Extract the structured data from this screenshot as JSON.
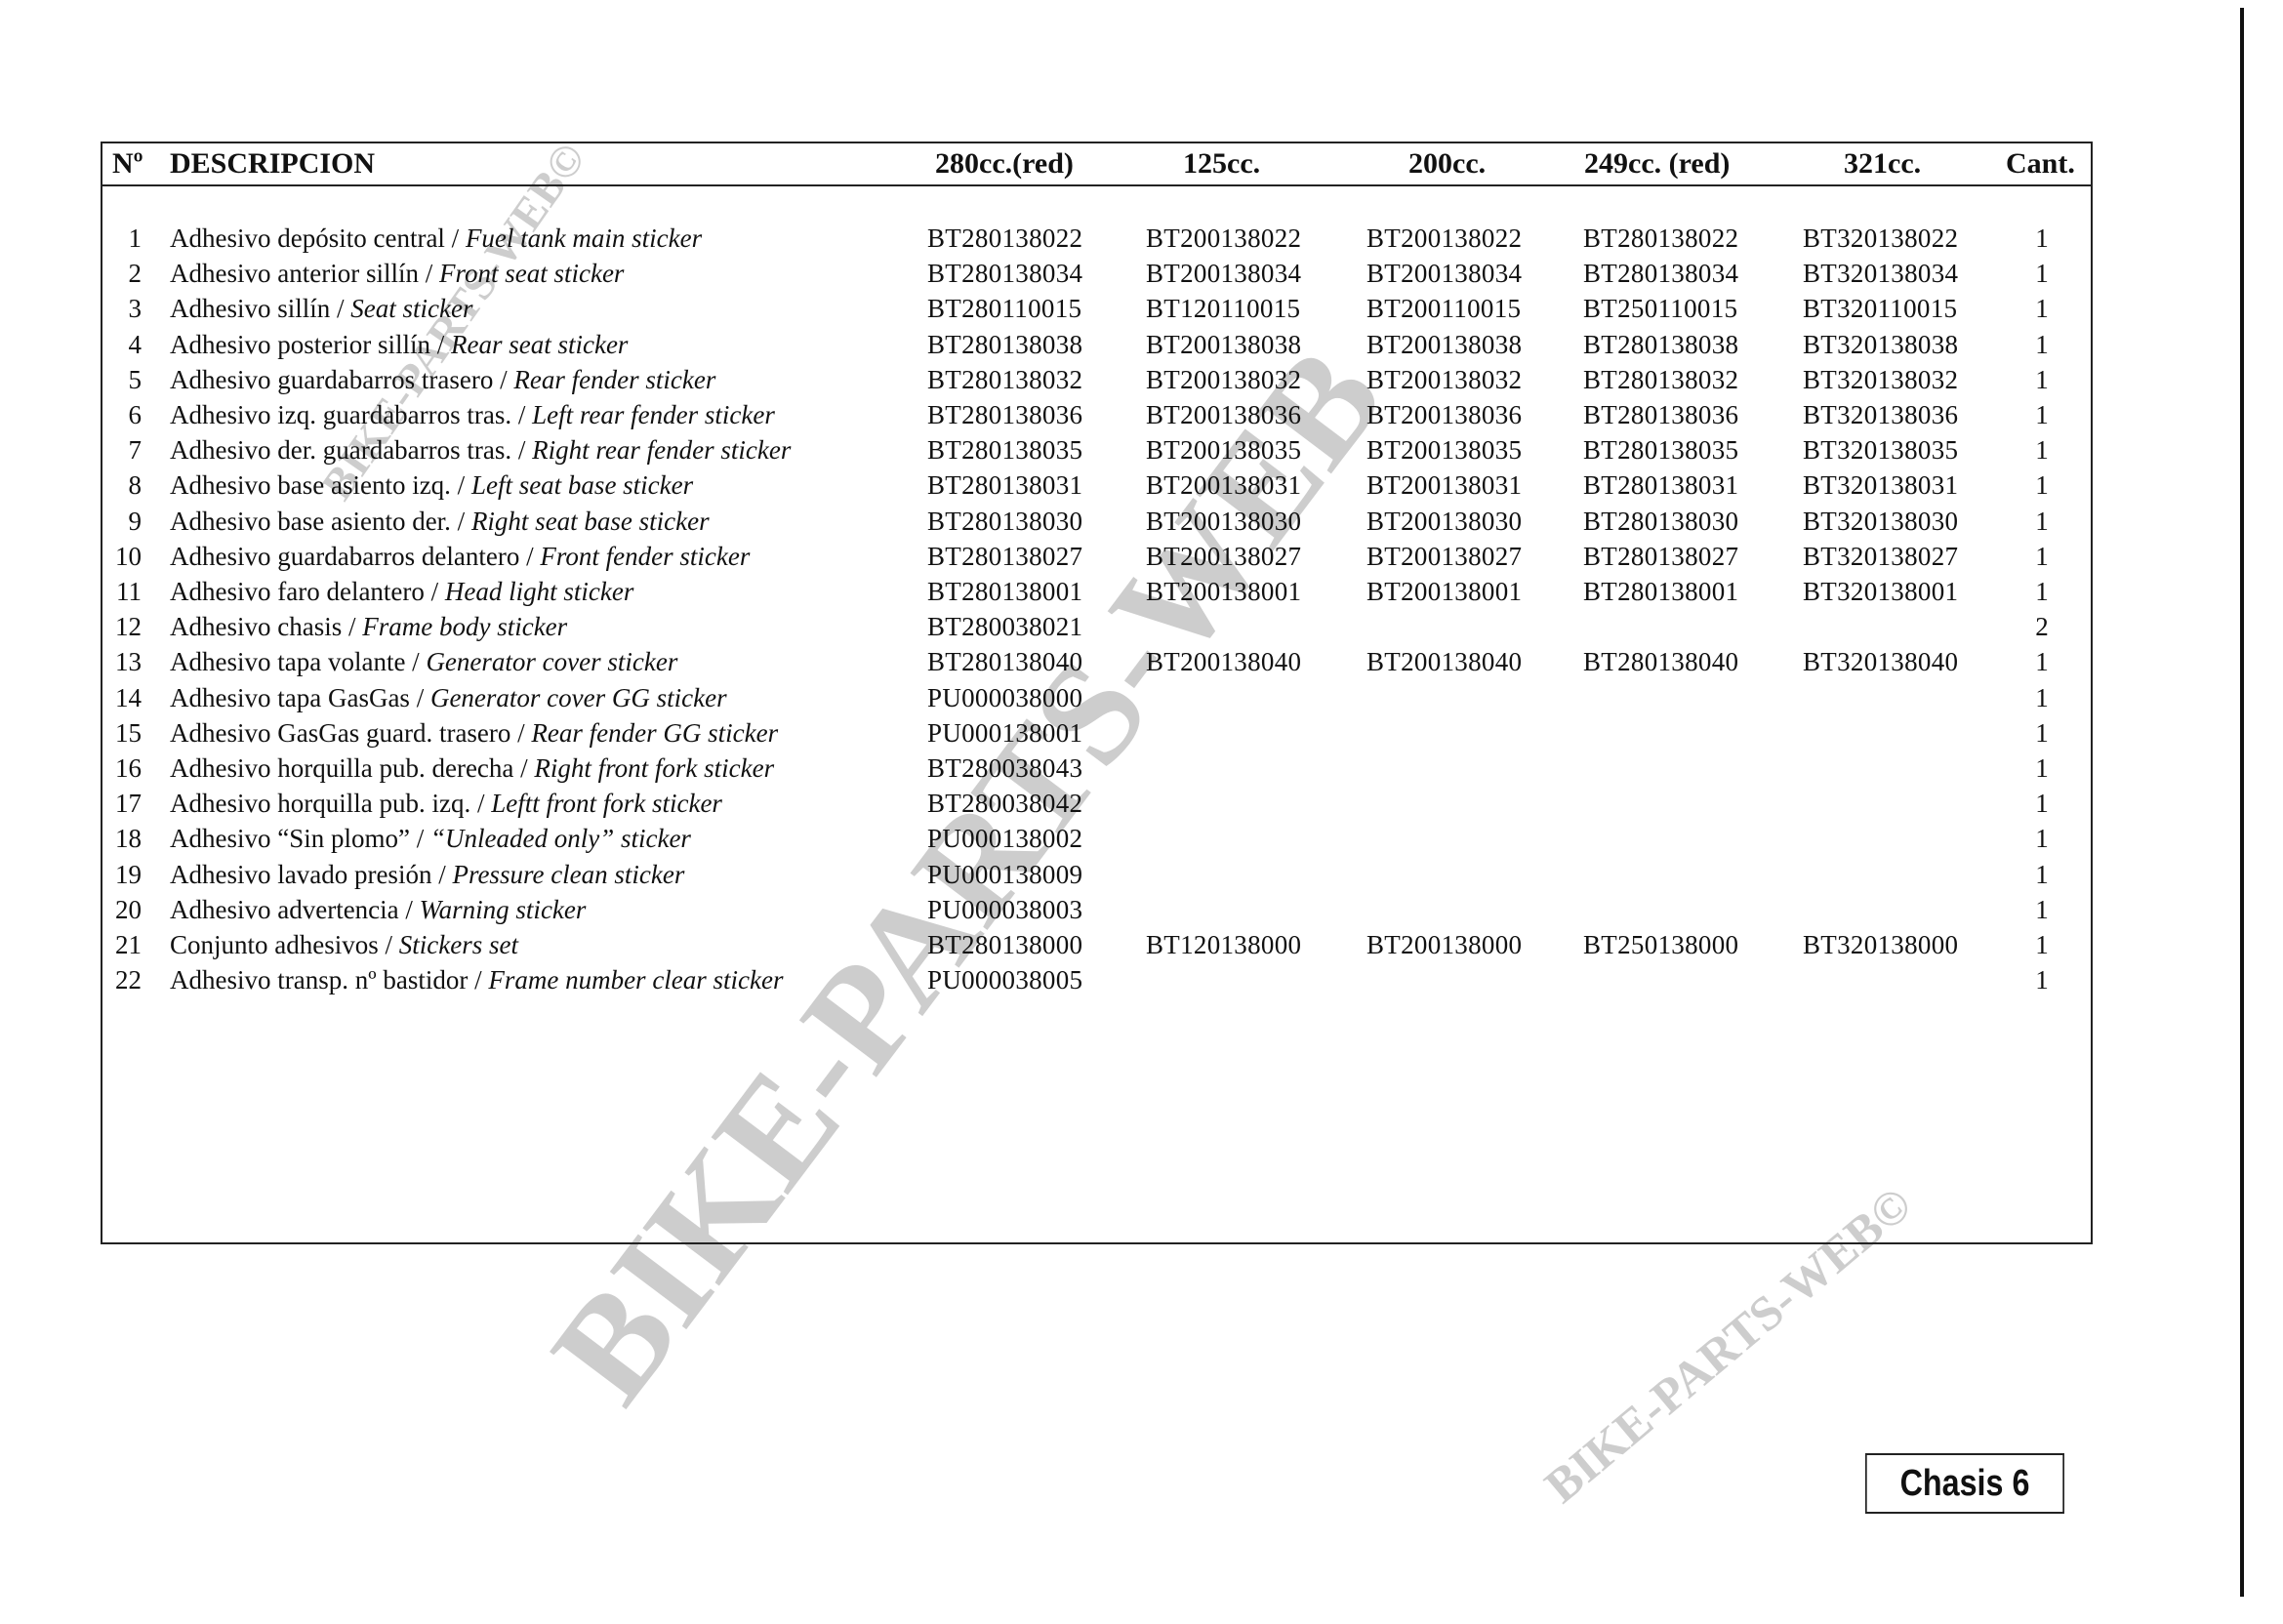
{
  "header": {
    "num": "Nº",
    "description": "DESCRIPCION",
    "columns": [
      "280cc.(red)",
      "125cc.",
      "200cc.",
      "249cc. (red)",
      "321cc."
    ],
    "qty": "Cant."
  },
  "rows": [
    {
      "num": "1",
      "es": "Adhesivo depósito central / ",
      "en": "Fuel tank main sticker",
      "codes": [
        "BT280138022",
        "BT200138022",
        "BT200138022",
        "BT280138022",
        "BT320138022"
      ],
      "qty": "1"
    },
    {
      "num": "2",
      "es": "Adhesivo anterior sillín / ",
      "en": "Front seat sticker",
      "codes": [
        "BT280138034",
        "BT200138034",
        "BT200138034",
        "BT280138034",
        "BT320138034"
      ],
      "qty": "1"
    },
    {
      "num": "3",
      "es": "Adhesivo sillín / ",
      "en": "Seat sticker",
      "codes": [
        "BT280110015",
        "BT120110015",
        "BT200110015",
        "BT250110015",
        "BT320110015"
      ],
      "qty": "1"
    },
    {
      "num": "4",
      "es": "Adhesivo posterior sillín / ",
      "en": "Rear seat sticker",
      "codes": [
        "BT280138038",
        "BT200138038",
        "BT200138038",
        "BT280138038",
        "BT320138038"
      ],
      "qty": "1"
    },
    {
      "num": "5",
      "es": "Adhesivo guardabarros trasero / ",
      "en": "Rear fender sticker",
      "codes": [
        "BT280138032",
        "BT200138032",
        "BT200138032",
        "BT280138032",
        "BT320138032"
      ],
      "qty": "1"
    },
    {
      "num": "6",
      "es": "Adhesivo izq. guardabarros tras. / ",
      "en": "Left rear fender sticker",
      "codes": [
        "BT280138036",
        "BT200138036",
        "BT200138036",
        "BT280138036",
        "BT320138036"
      ],
      "qty": "1"
    },
    {
      "num": "7",
      "es": "Adhesivo der. guardabarros tras. / ",
      "en": "Right rear fender sticker",
      "codes": [
        "BT280138035",
        "BT200138035",
        "BT200138035",
        "BT280138035",
        "BT320138035"
      ],
      "qty": "1"
    },
    {
      "num": "8",
      "es": "Adhesivo base asiento izq. / ",
      "en": "Left seat base sticker",
      "codes": [
        "BT280138031",
        "BT200138031",
        "BT200138031",
        "BT280138031",
        "BT320138031"
      ],
      "qty": "1"
    },
    {
      "num": "9",
      "es": "Adhesivo base asiento der. / ",
      "en": "Right seat base sticker",
      "codes": [
        "BT280138030",
        "BT200138030",
        "BT200138030",
        "BT280138030",
        "BT320138030"
      ],
      "qty": "1"
    },
    {
      "num": "10",
      "es": "Adhesivo guardabarros delantero / ",
      "en": "Front fender sticker",
      "codes": [
        "BT280138027",
        "BT200138027",
        "BT200138027",
        "BT280138027",
        "BT320138027"
      ],
      "qty": "1"
    },
    {
      "num": "11",
      "es": "Adhesivo faro delantero / ",
      "en": "Head light sticker",
      "codes": [
        "BT280138001",
        "BT200138001",
        "BT200138001",
        "BT280138001",
        "BT320138001"
      ],
      "qty": "1"
    },
    {
      "num": "12",
      "es": "Adhesivo chasis / ",
      "en": "Frame body sticker",
      "codes": [
        "BT280038021",
        "",
        "",
        "",
        ""
      ],
      "qty": "2"
    },
    {
      "num": "13",
      "es": "Adhesivo tapa volante / ",
      "en": "Generator cover sticker",
      "codes": [
        "BT280138040",
        "BT200138040",
        "BT200138040",
        "BT280138040",
        "BT320138040"
      ],
      "qty": "1"
    },
    {
      "num": "14",
      "es": "Adhesivo tapa GasGas / ",
      "en": "Generator cover GG sticker",
      "codes": [
        "PU000038000",
        "",
        "",
        "",
        ""
      ],
      "qty": "1"
    },
    {
      "num": "15",
      "es": "Adhesivo GasGas guard. trasero / ",
      "en": "Rear fender GG sticker",
      "codes": [
        "PU000138001",
        "",
        "",
        "",
        ""
      ],
      "qty": "1"
    },
    {
      "num": "16",
      "es": "Adhesivo horquilla pub. derecha / ",
      "en": "Right front fork sticker",
      "codes": [
        "BT280038043",
        "",
        "",
        "",
        ""
      ],
      "qty": "1"
    },
    {
      "num": "17",
      "es": "Adhesivo horquilla pub. izq. / ",
      "en": "Leftt front fork sticker",
      "codes": [
        "BT280038042",
        "",
        "",
        "",
        ""
      ],
      "qty": "1"
    },
    {
      "num": "18",
      "es": "Adhesivo “Sin plomo” / ",
      "en": "“Unleaded only” sticker",
      "codes": [
        "PU000138002",
        "",
        "",
        "",
        ""
      ],
      "qty": "1"
    },
    {
      "num": "19",
      "es": "Adhesivo lavado presión / ",
      "en": "Pressure clean sticker",
      "codes": [
        "PU000138009",
        "",
        "",
        "",
        ""
      ],
      "qty": "1"
    },
    {
      "num": "20",
      "es": "Adhesivo advertencia / ",
      "en": "Warning sticker",
      "codes": [
        "PU000038003",
        "",
        "",
        "",
        ""
      ],
      "qty": "1"
    },
    {
      "num": "21",
      "es": "Conjunto adhesivos / ",
      "en": "Stickers set",
      "codes": [
        "BT280138000",
        "BT120138000",
        "BT200138000",
        "BT250138000",
        "BT320138000"
      ],
      "qty": "1"
    },
    {
      "num": "22",
      "es": "Adhesivo transp. nº bastidor / ",
      "en": "Frame number clear sticker",
      "codes": [
        "PU000038005",
        "",
        "",
        "",
        ""
      ],
      "qty": "1"
    }
  ],
  "watermark": {
    "text": "BIKE-PARTS-WEB",
    "mark": "©"
  },
  "page_label": "Chasis 6"
}
